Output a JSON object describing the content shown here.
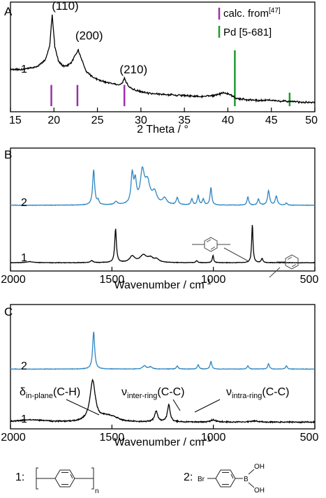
{
  "chart_data": [
    {
      "type": "line",
      "panel": "A",
      "xlabel": "2 Theta / °",
      "ylabel": "",
      "xlim": [
        15,
        50
      ],
      "x_ticks": [
        "15",
        "20",
        "25",
        "30",
        "35",
        "40",
        "45",
        "50"
      ],
      "legend": {
        "placement": "top-right",
        "entries": [
          {
            "name": "calc. from",
            "sup": "[47]",
            "color": "#9b2fa8"
          },
          {
            "name": "Pd [5-681]",
            "color": "#1f9a2e"
          }
        ]
      },
      "series": [
        {
          "name": "1",
          "color": "#000000",
          "x": [
            15,
            16,
            17,
            18,
            19,
            19.5,
            19.8,
            20.1,
            20.5,
            21,
            21.5,
            22,
            22.4,
            22.8,
            23.2,
            23.7,
            24.5,
            25.5,
            26.5,
            27.3,
            27.8,
            28.1,
            28.6,
            29.5,
            31,
            33,
            35,
            37,
            38.5,
            39.5,
            40.2,
            41,
            43,
            45,
            47,
            48.5,
            50
          ],
          "y": [
            0.38,
            0.38,
            0.39,
            0.41,
            0.48,
            0.62,
            0.95,
            0.62,
            0.47,
            0.42,
            0.42,
            0.45,
            0.52,
            0.58,
            0.48,
            0.36,
            0.3,
            0.26,
            0.24,
            0.22,
            0.23,
            0.29,
            0.2,
            0.16,
            0.13,
            0.12,
            0.11,
            0.1,
            0.11,
            0.14,
            0.12,
            0.08,
            0.06,
            0.06,
            0.05,
            0.04,
            0.04
          ]
        }
      ],
      "reference_lines": [
        {
          "set": "calc",
          "color": "#9b2fa8",
          "x": [
            19.7,
            22.7,
            28.1
          ],
          "height": [
            0.22,
            0.22,
            0.22
          ]
        },
        {
          "set": "pd",
          "color": "#1f9a2e",
          "x": [
            40.8,
            47.1
          ],
          "height": [
            0.58,
            0.14
          ]
        }
      ],
      "annotations": [
        "(110)",
        "(200)",
        "(210)"
      ],
      "annotation_x": [
        20.4,
        23.1,
        28.2
      ],
      "annotation_y": [
        1.03,
        0.72,
        0.37
      ]
    },
    {
      "type": "line",
      "panel": "B",
      "xlabel": "Wavenumber / cm",
      "xlabel_sup": "-1",
      "ylabel": "",
      "xlim": [
        2000,
        500
      ],
      "x_ticks": [
        "2000",
        "1500",
        "1000",
        "500"
      ],
      "series": [
        {
          "name": "2",
          "color": "#2d86c2",
          "baseline": 0.62,
          "noise": 0.003,
          "peaks": [
            [
              1590,
              0.34,
              6
            ],
            [
              1568,
              0.04,
              5
            ],
            [
              1480,
              0.03,
              8
            ],
            [
              1400,
              0.28,
              7
            ],
            [
              1385,
              0.2,
              7
            ],
            [
              1350,
              0.3,
              12
            ],
            [
              1325,
              0.2,
              15
            ],
            [
              1290,
              0.11,
              14
            ],
            [
              1240,
              0.06,
              12
            ],
            [
              1178,
              0.07,
              6
            ],
            [
              1106,
              0.06,
              5
            ],
            [
              1075,
              0.09,
              5
            ],
            [
              1050,
              0.06,
              5
            ],
            [
              1012,
              0.17,
              5
            ],
            [
              830,
              0.08,
              5
            ],
            [
              778,
              0.06,
              5
            ],
            [
              728,
              0.14,
              6
            ],
            [
              690,
              0.09,
              6
            ],
            [
              640,
              0.02,
              5
            ]
          ]
        },
        {
          "name": "1",
          "color": "#000000",
          "baseline": 0.06,
          "noise": 0.003,
          "peaks": [
            [
              1905,
              0.01,
              20
            ],
            [
              1600,
              0.02,
              8
            ],
            [
              1482,
              0.33,
              5
            ],
            [
              1400,
              0.06,
              15
            ],
            [
              1345,
              0.07,
              20
            ],
            [
              1310,
              0.04,
              15
            ],
            [
              1280,
              0.03,
              15
            ],
            [
              1082,
              0.02,
              5
            ],
            [
              1002,
              0.07,
              4
            ],
            [
              808,
              0.37,
              4
            ],
            [
              760,
              0.04,
              5
            ]
          ]
        }
      ],
      "series_labels": [
        "2",
        "1"
      ]
    },
    {
      "type": "line",
      "panel": "C",
      "xlabel": "Wavenumber / cm",
      "xlabel_sup": "-1",
      "ylabel": "",
      "xlim": [
        2000,
        500
      ],
      "x_ticks": [
        "2000",
        "1500",
        "1000",
        "500"
      ],
      "series": [
        {
          "name": "2",
          "color": "#2d86c2",
          "baseline": 0.55,
          "noise": 0.003,
          "peaks": [
            [
              1590,
              0.35,
              6
            ],
            [
              1340,
              0.03,
              10
            ],
            [
              1310,
              0.02,
              10
            ],
            [
              1178,
              0.03,
              5
            ],
            [
              1075,
              0.04,
              5
            ],
            [
              1012,
              0.07,
              5
            ],
            [
              830,
              0.03,
              5
            ],
            [
              728,
              0.05,
              5
            ],
            [
              640,
              0.03,
              5
            ]
          ]
        },
        {
          "name": "1",
          "color": "#000000",
          "baseline": 0.05,
          "noise": 0.007,
          "peaks": [
            [
              1900,
              0.02,
              80
            ],
            [
              1595,
              0.38,
              16
            ],
            [
              1525,
              0.05,
              40
            ],
            [
              1485,
              0.02,
              25
            ],
            [
              1282,
              0.1,
              9
            ],
            [
              1220,
              0.16,
              8
            ],
            [
              1000,
              0.02,
              15
            ],
            [
              800,
              0.01,
              20
            ]
          ]
        }
      ],
      "series_labels": [
        "2",
        "1"
      ],
      "annotations": [
        {
          "main": "δ",
          "sub": "in-plane",
          "tail": "(C-H)"
        },
        {
          "main": "ν",
          "sub": "inter-ring",
          "tail": "(C-C)"
        },
        {
          "main": "ν",
          "sub": "intra-ring",
          "tail": "(C-C)"
        }
      ]
    }
  ],
  "panels": {
    "a": "A",
    "b": "B",
    "c": "C"
  },
  "structures": {
    "label1": "1:",
    "label2": "2:",
    "subscript_n": "n",
    "br": "Br",
    "b": "B",
    "oh": "OH"
  }
}
